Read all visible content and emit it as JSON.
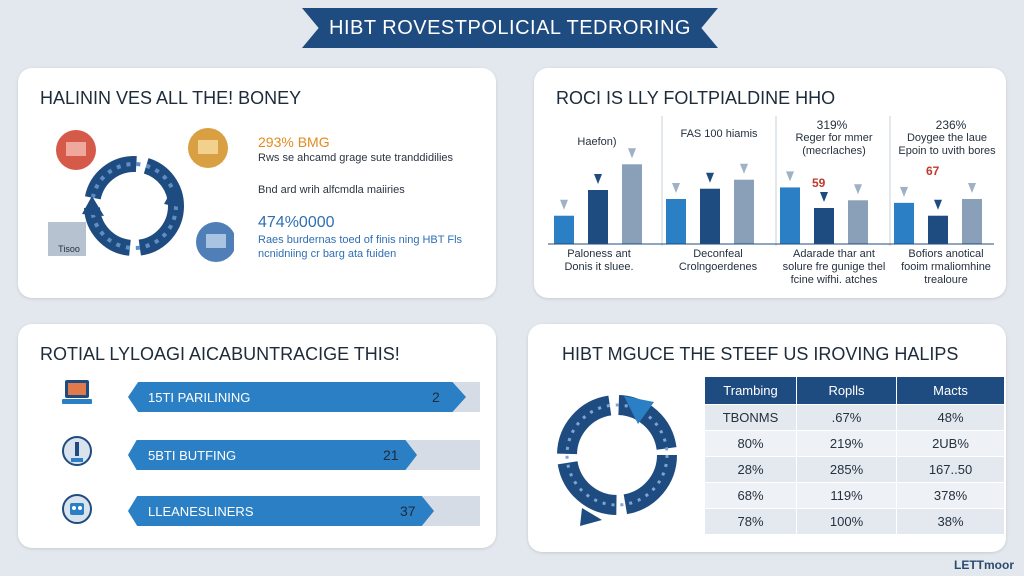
{
  "header": {
    "title": "HIBT ROVESTPOLICIAL TEDRORING"
  },
  "card1": {
    "title": "HALININ VES ALL THE! BONEY",
    "bubbles": [
      "",
      "",
      "Tisoo",
      ""
    ],
    "stat1": "293% BMG",
    "line1": "Rws se ahcamd grage sute tranddidilies",
    "line2": "Bnd ard wrih alfcmdla maiiries",
    "stat2": "474%0000",
    "note1": "Raes burdernas toed of finis ning HBT Fls",
    "note2": "ncnidniing cr barg ata fuiden"
  },
  "card2": {
    "title": "ROCI IS LLY FOLTPIALDINE HHO",
    "groups": [
      {
        "label_top": "Haefon)",
        "label_bottom": "Paloness ant\nDonis it sluee.",
        "pct": "",
        "red": ""
      },
      {
        "label_top": "FAS 100 hiamis",
        "label_bottom": "Deconfeal\nCrolngoerdenes",
        "pct": "",
        "red": ""
      },
      {
        "label_top": "Reger for mmer\n(mecrlaches)",
        "label_bottom": "Adarade thar ant\nsolure fre gunige thel\nfcine wifhi. atches",
        "pct": "319%",
        "red": "59"
      },
      {
        "label_top": "Doygee the laue\nEpoin to uvith bores",
        "label_bottom": "Bofiors anotical\nfooim rmaliomhine\ntrealoure",
        "pct": "236%",
        "red": "67"
      }
    ]
  },
  "chart_data": {
    "type": "bar",
    "categories": [
      "Haefon)",
      "FAS 100 hiamis",
      "Reger for mmer",
      "Doygee the laue"
    ],
    "series": [
      {
        "values": [
          22,
          35,
          44,
          32
        ]
      },
      {
        "values": [
          42,
          43,
          28,
          22
        ]
      },
      {
        "values": [
          62,
          50,
          34,
          35
        ]
      }
    ],
    "title": "ROCI IS LLY FOLTPIALDINE HHO"
  },
  "card3": {
    "title": "ROTIAL LYLOAGI AICABUNTRACIGE THIS!",
    "rows": [
      {
        "label": "15TI PARILINING",
        "value": "2",
        "fill": 0.96,
        "icon": "laptop-icon"
      },
      {
        "label": "5BTI BUTFING",
        "value": "21",
        "fill": 0.82,
        "icon": "gauge-icon"
      },
      {
        "label": "LLEANESLINERS",
        "value": "37",
        "fill": 0.87,
        "icon": "robot-icon"
      }
    ]
  },
  "card4": {
    "title": "HIBT MGUCE THE STEEF US IROVING HALIPS",
    "headers": [
      "Trambing",
      "Roplls",
      "Macts"
    ],
    "rows": [
      [
        "TBONMS",
        ".67%",
        "48%"
      ],
      [
        "80%",
        "219%",
        "2UB%"
      ],
      [
        "28%",
        "285%",
        "167..50"
      ],
      [
        "68%",
        "119%",
        "378%"
      ],
      [
        "78%",
        "100%",
        "38%"
      ]
    ]
  },
  "footer": {
    "watermark": "LETTmoor"
  },
  "colors": {
    "navy": "#1f4c80",
    "accent_blue": "#2b7fc4",
    "orange": "#e38a1f",
    "red": "#c0392b"
  }
}
